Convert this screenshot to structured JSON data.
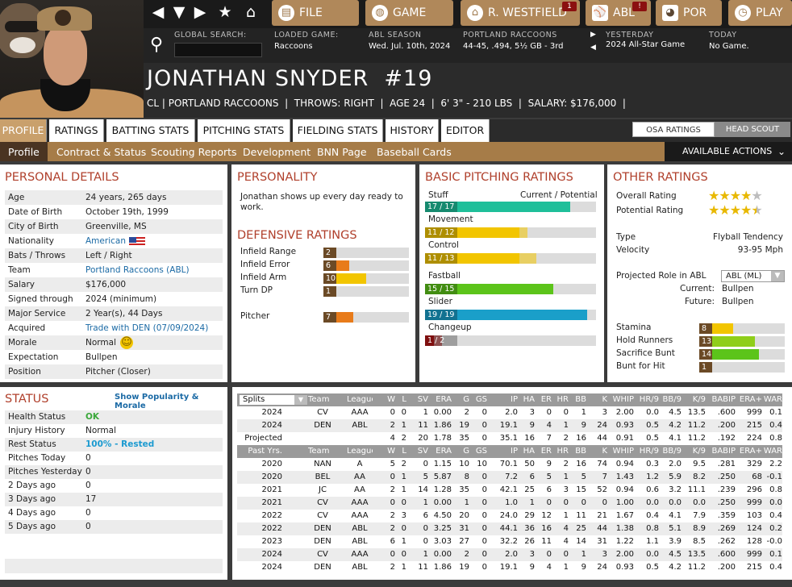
{
  "nav": {
    "file": "FILE",
    "game": "GAME",
    "team": "R. WESTFIELD",
    "team_badge": "1",
    "abl": "ABL",
    "abl_badge": "!",
    "pop": "POR",
    "play": "PLAY"
  },
  "info": {
    "search_label": "GLOBAL SEARCH:",
    "loaded_label": "LOADED GAME:",
    "loaded_value": "Raccoons",
    "season_label": "ABL SEASON",
    "season_value": "Wed. Jul. 10th, 2024",
    "team_label": "PORTLAND RACCOONS",
    "team_value": "44-45, .494, 5½ GB - 3rd",
    "yesterday_label": "YESTERDAY",
    "yesterday_value": "2024 All-Star Game",
    "today_label": "TODAY",
    "today_value": "No Game."
  },
  "player": {
    "name": "JONATHAN SNYDER  #19",
    "info": "CL | PORTLAND RACCOONS  |  THROWS: RIGHT  |  AGE 24  |  6' 3\" - 210 LBS  |  SALARY: $176,000  |"
  },
  "tabs": [
    "PROFILE",
    "RATINGS",
    "BATTING STATS",
    "PITCHING STATS",
    "FIELDING STATS",
    "HISTORY",
    "EDITOR"
  ],
  "rating_toggle": {
    "osa": "OSA RATINGS",
    "scout": "HEAD SCOUT"
  },
  "subnav": [
    "Profile",
    "Contract & Status",
    "Scouting Reports",
    "Development",
    "BNN Page",
    "Baseball Cards"
  ],
  "actions": "AVAILABLE ACTIONS",
  "personal": {
    "title": "PERSONAL DETAILS",
    "rows": [
      [
        "Age",
        "24 years, 265 days"
      ],
      [
        "Date of Birth",
        "October 19th, 1999"
      ],
      [
        "City of Birth",
        "Greenville, MS"
      ],
      [
        "Nationality",
        "American"
      ],
      [
        "Bats / Throws",
        "Left / Right"
      ],
      [
        "Team",
        "Portland Raccoons (ABL)"
      ],
      [
        "Salary",
        "$176,000"
      ],
      [
        "Signed through",
        "2024 (minimum)"
      ],
      [
        "Major Service",
        "2 Year(s), 44 Days"
      ],
      [
        "Acquired",
        "Trade with DEN (07/09/2024)"
      ],
      [
        "Morale",
        "Normal"
      ],
      [
        "Expectation",
        "Bullpen"
      ],
      [
        "Position",
        "Pitcher (Closer)"
      ]
    ]
  },
  "personality": {
    "title": "PERSONALITY",
    "text": "Jonathan shows up every day ready to work."
  },
  "defense": {
    "title": "DEFENSIVE RATINGS",
    "rows": [
      {
        "label": "Infield Range",
        "value": 2,
        "color": "#b01515"
      },
      {
        "label": "Infield Error",
        "value": 6,
        "color": "#e87b1a"
      },
      {
        "label": "Infield Arm",
        "value": 10,
        "color": "#f2c500"
      },
      {
        "label": "Turn DP",
        "value": 1,
        "color": "#8b1010"
      },
      {
        "label": "Pitcher",
        "value": 7,
        "color": "#e87b1a"
      }
    ]
  },
  "pitching": {
    "title": "BASIC PITCHING RATINGS",
    "header_left": "Stuff",
    "header_right": "Current / Potential",
    "rows": [
      {
        "label": "",
        "text": "17 / 17",
        "cur": 17,
        "pot": 17,
        "color": "#1fbf9a"
      },
      {
        "label": "Movement",
        "text": "11 / 12",
        "cur": 11,
        "pot": 12,
        "color": "#f2c500"
      },
      {
        "label": "Control",
        "text": "11 / 13",
        "cur": 11,
        "pot": 13,
        "color": "#f2c500"
      },
      {
        "label": "Fastball",
        "text": "15 / 15",
        "cur": 15,
        "pot": 15,
        "color": "#5cc41a"
      },
      {
        "label": "Slider",
        "text": "19 / 19",
        "cur": 19,
        "pot": 19,
        "color": "#1a9fc9"
      },
      {
        "label": "Changeup",
        "text": "1 / 2",
        "cur": 1,
        "pot": 2,
        "color": "#b01515"
      }
    ]
  },
  "other": {
    "title": "OTHER RATINGS",
    "overall_label": "Overall Rating",
    "overall_stars": 4,
    "potential_label": "Potential Rating",
    "potential_stars": 4.5,
    "type_label": "Type",
    "type_value": "Flyball Tendency",
    "velo_label": "Velocity",
    "velo_value": "93-95 Mph",
    "role_label": "Projected Role in ABL",
    "role_select": "ABL (ML)",
    "current_label": "Current:",
    "current_value": "Bullpen",
    "future_label": "Future:",
    "future_value": "Bullpen",
    "bars": [
      {
        "label": "Stamina",
        "value": 8,
        "color": "#f2c500"
      },
      {
        "label": "Hold Runners",
        "value": 13,
        "color": "#8fce1a"
      },
      {
        "label": "Sacrifice Bunt",
        "value": 14,
        "color": "#5cc41a"
      },
      {
        "label": "Bunt for Hit",
        "value": 1,
        "color": "#8b1010"
      }
    ]
  },
  "status": {
    "title": "STATUS",
    "link": "Show Popularity & Morale",
    "rows": [
      [
        "Health Status",
        "OK"
      ],
      [
        "Injury History",
        "Normal"
      ],
      [
        "Rest Status",
        "100% - Rested"
      ],
      [
        "Pitches Today",
        "0"
      ],
      [
        "Pitches Yesterday",
        "0"
      ],
      [
        "2 Days ago",
        "0"
      ],
      [
        "3 Days ago",
        "17"
      ],
      [
        "4 Days ago",
        "0"
      ],
      [
        "5 Days ago",
        "0"
      ]
    ]
  },
  "stats": {
    "split_select": "Splits",
    "header1": [
      "Team",
      "League",
      "W",
      "L",
      "SV",
      "ERA",
      "G",
      "GS",
      "IP",
      "HA",
      "ER",
      "HR",
      "BB",
      "K",
      "WHIP",
      "HR/9",
      "BB/9",
      "K/9",
      "BABIP",
      "ERA+",
      "WAR"
    ],
    "top": [
      [
        "2024",
        "CV",
        "AAA",
        "0",
        "0",
        "1",
        "0.00",
        "2",
        "0",
        "2.0",
        "3",
        "0",
        "0",
        "1",
        "3",
        "2.00",
        "0.0",
        "4.5",
        "13.5",
        ".600",
        "999",
        "0.1"
      ],
      [
        "2024",
        "DEN",
        "ABL",
        "2",
        "1",
        "11",
        "1.86",
        "19",
        "0",
        "19.1",
        "9",
        "4",
        "1",
        "9",
        "24",
        "0.93",
        "0.5",
        "4.2",
        "11.2",
        ".200",
        "215",
        "0.4"
      ],
      [
        "Projected",
        "",
        "",
        "4",
        "2",
        "20",
        "1.78",
        "35",
        "0",
        "35.1",
        "16",
        "7",
        "2",
        "16",
        "44",
        "0.91",
        "0.5",
        "4.1",
        "11.2",
        ".192",
        "224",
        "0.8"
      ]
    ],
    "past_label": "Past Yrs.",
    "past": [
      [
        "2020",
        "NAN",
        "A",
        "5",
        "2",
        "0",
        "1.15",
        "10",
        "10",
        "70.1",
        "50",
        "9",
        "2",
        "16",
        "74",
        "0.94",
        "0.3",
        "2.0",
        "9.5",
        ".281",
        "329",
        "2.2"
      ],
      [
        "2020",
        "BEL",
        "AA",
        "0",
        "1",
        "5",
        "5.87",
        "8",
        "0",
        "7.2",
        "6",
        "5",
        "1",
        "5",
        "7",
        "1.43",
        "1.2",
        "5.9",
        "8.2",
        ".250",
        "68",
        "-0.1"
      ],
      [
        "2021",
        "JC",
        "AA",
        "2",
        "1",
        "14",
        "1.28",
        "35",
        "0",
        "42.1",
        "25",
        "6",
        "3",
        "15",
        "52",
        "0.94",
        "0.6",
        "3.2",
        "11.1",
        ".239",
        "296",
        "0.8"
      ],
      [
        "2021",
        "CV",
        "AAA",
        "0",
        "0",
        "1",
        "0.00",
        "1",
        "0",
        "1.0",
        "1",
        "0",
        "0",
        "0",
        "0",
        "1.00",
        "0.0",
        "0.0",
        "0.0",
        ".250",
        "999",
        "0.0"
      ],
      [
        "2022",
        "CV",
        "AAA",
        "2",
        "3",
        "6",
        "4.50",
        "20",
        "0",
        "24.0",
        "29",
        "12",
        "1",
        "11",
        "21",
        "1.67",
        "0.4",
        "4.1",
        "7.9",
        ".359",
        "103",
        "0.4"
      ],
      [
        "2022",
        "DEN",
        "ABL",
        "2",
        "0",
        "0",
        "3.25",
        "31",
        "0",
        "44.1",
        "36",
        "16",
        "4",
        "25",
        "44",
        "1.38",
        "0.8",
        "5.1",
        "8.9",
        ".269",
        "124",
        "0.2"
      ],
      [
        "2023",
        "DEN",
        "ABL",
        "6",
        "1",
        "0",
        "3.03",
        "27",
        "0",
        "32.2",
        "26",
        "11",
        "4",
        "14",
        "31",
        "1.22",
        "1.1",
        "3.9",
        "8.5",
        ".262",
        "128",
        "-0.0"
      ],
      [
        "2024",
        "CV",
        "AAA",
        "0",
        "0",
        "1",
        "0.00",
        "2",
        "0",
        "2.0",
        "3",
        "0",
        "0",
        "1",
        "3",
        "2.00",
        "0.0",
        "4.5",
        "13.5",
        ".600",
        "999",
        "0.1"
      ],
      [
        "2024",
        "DEN",
        "ABL",
        "2",
        "1",
        "11",
        "1.86",
        "19",
        "0",
        "19.1",
        "9",
        "4",
        "1",
        "9",
        "24",
        "0.93",
        "0.5",
        "4.2",
        "11.2",
        ".200",
        "215",
        "0.4"
      ]
    ]
  }
}
